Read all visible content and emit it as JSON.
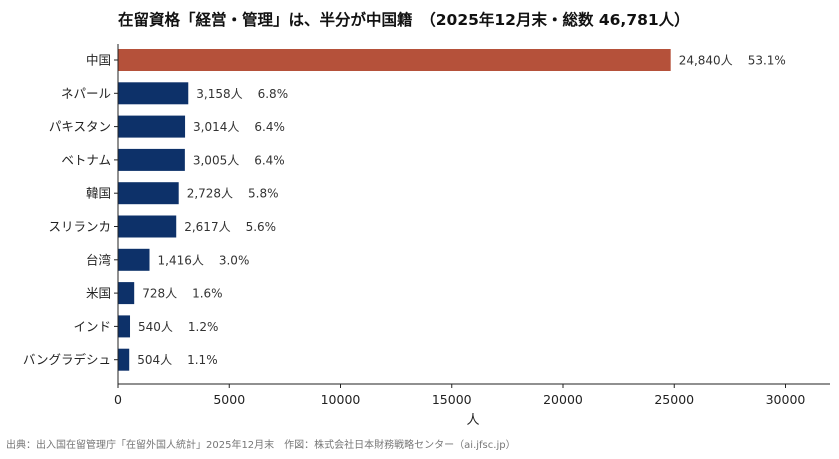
{
  "chart_data": {
    "type": "bar",
    "orientation": "horizontal",
    "title": "在留資格「経営・管理」は、半分が中国籍　（2025年12月末・総数 46,781人）",
    "xlabel": "人",
    "ylabel": "",
    "xlim": [
      0,
      32000
    ],
    "xticks": [
      0,
      5000,
      10000,
      15000,
      20000,
      25000,
      30000
    ],
    "grid": false,
    "categories": [
      "中国",
      "ネパール",
      "パキスタン",
      "ベトナム",
      "韓国",
      "スリランカ",
      "台湾",
      "米国",
      "インド",
      "バングラデシュ"
    ],
    "values": [
      24840,
      3158,
      3014,
      3005,
      2728,
      2617,
      1416,
      728,
      540,
      504
    ],
    "value_labels": [
      "24,840人",
      "3,158人",
      "3,014人",
      "3,005人",
      "2,728人",
      "2,617人",
      "1,416人",
      "728人",
      "540人",
      "504人"
    ],
    "share_labels": [
      "53.1%",
      "6.8%",
      "6.4%",
      "6.4%",
      "5.8%",
      "5.6%",
      "3.0%",
      "1.6%",
      "1.2%",
      "1.1%"
    ],
    "colors": {
      "highlight": "#b5513a",
      "default": "#0d3169",
      "axis": "#222222",
      "label": "#333333"
    },
    "source": "出典：出入国在留管理庁「在留外国人統計」2025年12月末　作図：株式会社日本財務戦略センター（ai.jfsc.jp）"
  }
}
